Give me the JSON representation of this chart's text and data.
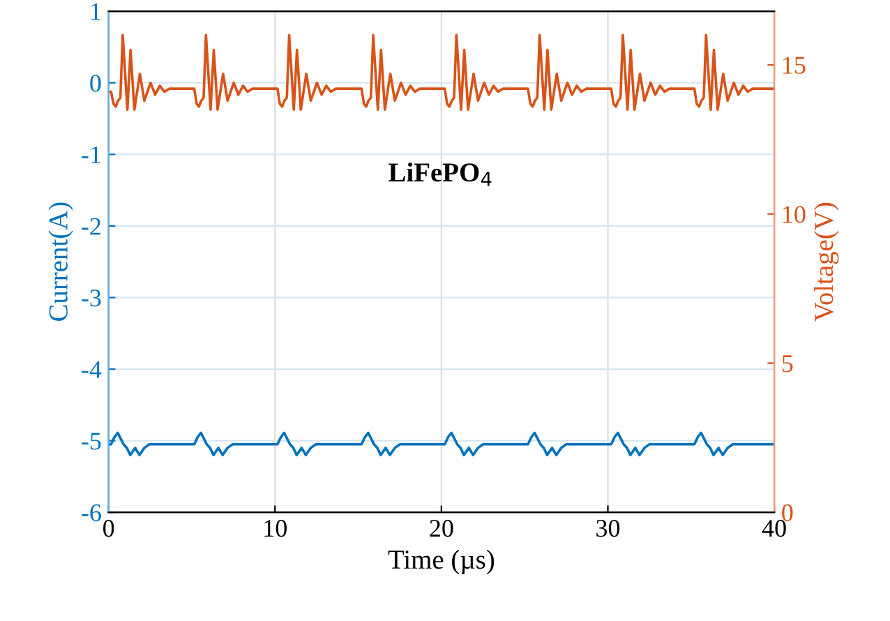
{
  "chart_data": {
    "type": "line",
    "xlabel": "Time (µs)",
    "ylabel": "Current(A)",
    "y2label": "Voltage(V)",
    "annotations": [
      "LiFePO$_{4}$"
    ],
    "xlim": [
      0,
      40
    ],
    "xticks": [
      0,
      10,
      20,
      30,
      40
    ],
    "ylim": [
      -6,
      1
    ],
    "yticks": [
      -6,
      -5,
      -4,
      -3,
      -2,
      -1,
      0,
      1
    ],
    "y2lim": [
      0,
      16.8
    ],
    "y2ticks": [
      0,
      5,
      10,
      15
    ],
    "grid": true,
    "line_style": "solid",
    "series": [
      {
        "color": "#0072bd",
        "axis": "y",
        "x": [
          0,
          0.15,
          0.35,
          0.55,
          0.9,
          1.1,
          1.3,
          1.6,
          1.85,
          2.15,
          2.45,
          5.15,
          5.35,
          5.55,
          5.9,
          6.1,
          6.3,
          6.6,
          6.85,
          7.15,
          7.45,
          10.15,
          10.35,
          10.55,
          10.9,
          11.1,
          11.3,
          11.6,
          11.85,
          12.15,
          12.45,
          15.2,
          15.4,
          15.6,
          15.95,
          16.15,
          16.35,
          16.65,
          16.9,
          17.2,
          17.5,
          20.2,
          20.4,
          20.6,
          20.95,
          21.15,
          21.35,
          21.65,
          21.9,
          22.2,
          22.5,
          25.2,
          25.4,
          25.6,
          25.95,
          26.15,
          26.35,
          26.65,
          26.9,
          27.2,
          27.5,
          30.2,
          30.4,
          30.6,
          30.95,
          31.15,
          31.35,
          31.65,
          31.9,
          32.2,
          32.5,
          35.2,
          35.4,
          35.6,
          35.95,
          36.15,
          36.35,
          36.65,
          36.9,
          37.2,
          37.5,
          40
        ],
        "values": [
          -5.05,
          -5.05,
          -4.95,
          -4.89,
          -5.05,
          -5.1,
          -5.2,
          -5.1,
          -5.2,
          -5.1,
          -5.05,
          -5.05,
          -4.95,
          -4.89,
          -5.05,
          -5.1,
          -5.2,
          -5.1,
          -5.2,
          -5.1,
          -5.05,
          -5.05,
          -4.95,
          -4.89,
          -5.05,
          -5.1,
          -5.2,
          -5.1,
          -5.2,
          -5.1,
          -5.05,
          -5.05,
          -4.95,
          -4.89,
          -5.05,
          -5.1,
          -5.2,
          -5.1,
          -5.2,
          -5.1,
          -5.05,
          -5.05,
          -4.95,
          -4.89,
          -5.05,
          -5.1,
          -5.2,
          -5.1,
          -5.2,
          -5.1,
          -5.05,
          -5.05,
          -4.95,
          -4.89,
          -5.05,
          -5.1,
          -5.2,
          -5.1,
          -5.2,
          -5.1,
          -5.05,
          -5.05,
          -4.95,
          -4.89,
          -5.05,
          -5.1,
          -5.2,
          -5.1,
          -5.2,
          -5.1,
          -5.05,
          -5.05,
          -4.95,
          -4.89,
          -5.05,
          -5.1,
          -5.2,
          -5.1,
          -5.2,
          -5.1,
          -5.05,
          -5.05
        ]
      },
      {
        "color": "#d95319",
        "axis": "y2",
        "x": [
          0,
          0.15,
          0.29,
          0.43,
          0.57,
          0.71,
          0.85,
          1.13,
          1.32,
          1.55,
          1.88,
          2.15,
          2.52,
          2.8,
          3.08,
          3.35,
          3.65,
          4.05,
          5.15,
          5.29,
          5.43,
          5.57,
          5.71,
          5.85,
          6.13,
          6.32,
          6.55,
          6.88,
          7.15,
          7.52,
          7.8,
          8.08,
          8.35,
          8.65,
          9.05,
          10.15,
          10.29,
          10.43,
          10.57,
          10.71,
          10.85,
          11.13,
          11.32,
          11.55,
          11.88,
          12.15,
          12.52,
          12.8,
          13.08,
          13.35,
          13.65,
          14.05,
          15.2,
          15.34,
          15.48,
          15.62,
          15.76,
          15.9,
          16.18,
          16.37,
          16.6,
          16.93,
          17.2,
          17.57,
          17.85,
          18.13,
          18.4,
          18.7,
          19.1,
          20.2,
          20.34,
          20.48,
          20.62,
          20.76,
          20.9,
          21.18,
          21.37,
          21.6,
          21.93,
          22.2,
          22.57,
          22.85,
          23.13,
          23.4,
          23.7,
          24.1,
          25.2,
          25.34,
          25.48,
          25.62,
          25.76,
          25.9,
          26.18,
          26.37,
          26.6,
          26.93,
          27.2,
          27.57,
          27.85,
          28.13,
          28.4,
          28.7,
          29.1,
          30.2,
          30.34,
          30.48,
          30.62,
          30.76,
          30.9,
          31.18,
          31.37,
          31.6,
          31.93,
          32.2,
          32.57,
          32.85,
          33.13,
          33.4,
          33.7,
          34.1,
          35.2,
          35.34,
          35.48,
          35.62,
          35.76,
          35.9,
          36.18,
          36.37,
          36.6,
          36.93,
          37.2,
          37.57,
          37.85,
          38.13,
          38.4,
          38.7,
          39.1,
          40
        ],
        "values": [
          14.1,
          14.1,
          13.7,
          13.6,
          13.8,
          13.9,
          16.0,
          13.5,
          15.5,
          13.5,
          14.7,
          13.8,
          14.4,
          14.0,
          14.3,
          14.1,
          14.2,
          14.2,
          14.2,
          13.7,
          13.6,
          13.8,
          13.9,
          16.0,
          13.5,
          15.5,
          13.5,
          14.7,
          13.8,
          14.4,
          14.0,
          14.3,
          14.1,
          14.2,
          14.2,
          14.2,
          13.7,
          13.6,
          13.8,
          13.9,
          16.0,
          13.5,
          15.5,
          13.5,
          14.7,
          13.8,
          14.4,
          14.0,
          14.3,
          14.1,
          14.2,
          14.2,
          14.2,
          13.7,
          13.6,
          13.8,
          13.9,
          16.0,
          13.5,
          15.5,
          13.5,
          14.7,
          13.8,
          14.4,
          14.0,
          14.3,
          14.1,
          14.2,
          14.2,
          14.2,
          13.7,
          13.6,
          13.8,
          13.9,
          16.0,
          13.5,
          15.5,
          13.5,
          14.7,
          13.8,
          14.4,
          14.0,
          14.3,
          14.1,
          14.2,
          14.2,
          14.2,
          13.7,
          13.6,
          13.8,
          13.9,
          16.0,
          13.5,
          15.5,
          13.5,
          14.7,
          13.8,
          14.4,
          14.0,
          14.3,
          14.1,
          14.2,
          14.2,
          14.2,
          13.7,
          13.6,
          13.8,
          13.9,
          16.0,
          13.5,
          15.5,
          13.5,
          14.7,
          13.8,
          14.4,
          14.0,
          14.3,
          14.1,
          14.2,
          14.2,
          14.2,
          13.7,
          13.6,
          13.8,
          13.9,
          16.0,
          13.5,
          15.5,
          13.5,
          14.7,
          13.8,
          14.4,
          14.0,
          14.3,
          14.1,
          14.2,
          14.2,
          14.2
        ]
      }
    ]
  }
}
